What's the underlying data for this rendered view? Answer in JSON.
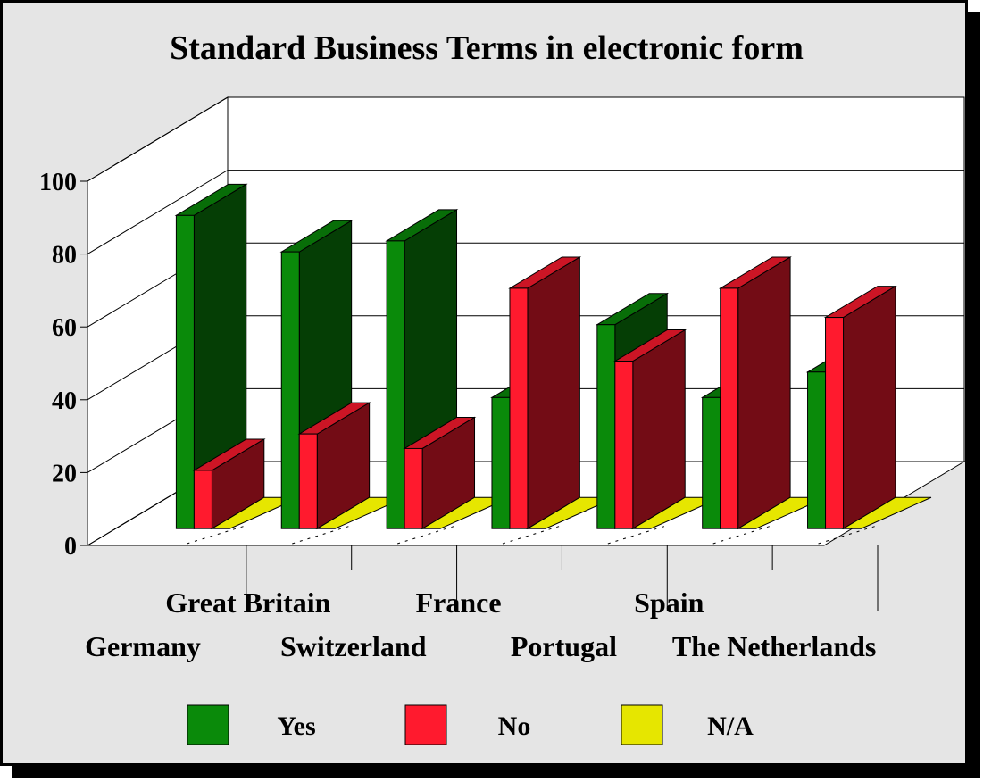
{
  "chart_data": {
    "type": "bar",
    "title": "Standard Business Terms in electronic form",
    "xlabel": "",
    "ylabel": "",
    "ylim": [
      0,
      100
    ],
    "yticks": [
      "0",
      "20",
      "40",
      "60",
      "80",
      "100"
    ],
    "categories": [
      "Germany",
      "Great Britain",
      "Switzerland",
      "France",
      "Portugal",
      "Spain",
      "The Netherlands"
    ],
    "series": [
      {
        "name": "Yes",
        "color": "#0a8a0a",
        "values": [
          86,
          76,
          79,
          36,
          56,
          36,
          43
        ]
      },
      {
        "name": "No",
        "color": "#ff1a2e",
        "values": [
          16,
          26,
          22,
          66,
          46,
          66,
          58
        ]
      },
      {
        "name": "N/A",
        "color": "#e6e600",
        "values": [
          0,
          0,
          0,
          0,
          0,
          0,
          0
        ]
      }
    ],
    "legend_position": "bottom",
    "grid": true
  }
}
